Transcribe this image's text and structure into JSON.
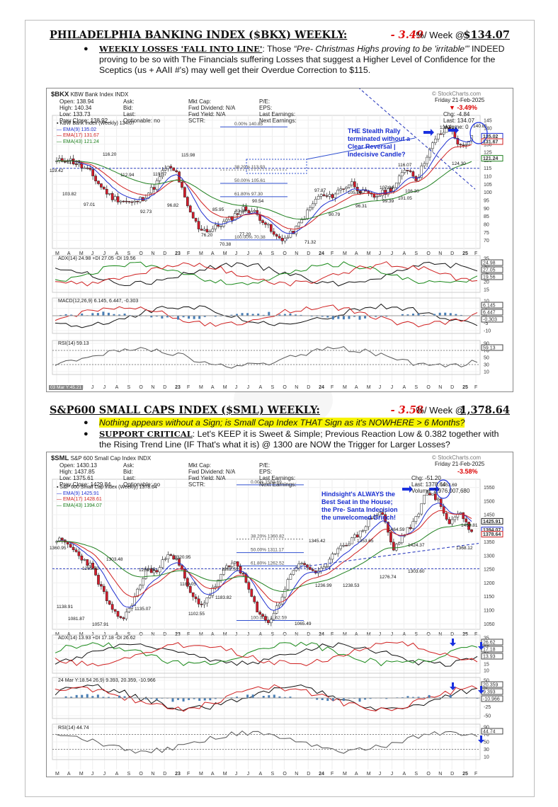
{
  "bkx": {
    "heading": "PHILADELPHIA BANKING INDEX ($BKX) WEEKLY:",
    "pct": "- 3.49",
    "per_week": "%/ Week @",
    "price": "$134.07",
    "bullet_label": "WEEKLY LOSSES 'FALL INTO LINE'",
    "bullet_colon": ": Those ",
    "bullet_quote": "“Pre- Christmas Highs proving to be 'irritable'”",
    "bullet_rest": " INDEED proving to be so with The Financials suffering Losses that suggest a Higher Level of Confidence for the Sceptics (us + AAII #'s) may well get their Overdue Correction to $115.",
    "chart": {
      "symbol": "$BKX",
      "name": "KBW Bank Index INDX",
      "source": "© StockCharts.com",
      "date": "Friday  21-Feb-2025",
      "change_pct": "▼ -3.49%",
      "left_block": [
        [
          "Open:",
          "138.94"
        ],
        [
          "High:",
          "140.34"
        ],
        [
          "Low:",
          "133.73"
        ],
        [
          "Prev Close:",
          "138.92"
        ]
      ],
      "mid_block": [
        "Ask:",
        "Bid:",
        "Last:",
        "Optionable:   no"
      ],
      "right_block": [
        "Mkt Cap:",
        "Fwd Dividend: N/A",
        "Fwd Yield:    N/A",
        "SCTR:"
      ],
      "far_block": [
        "P/E:",
        "EPS:",
        "Last Earnings:",
        "Next Earnings:"
      ],
      "stats": [
        [
          "Chg:",
          "-4.84"
        ],
        [
          "Last:",
          "134.07"
        ],
        [
          "Volume:",
          "0"
        ]
      ],
      "legend": [
        "▪ KBW Bank Index (Weekly) 134.07",
        "— EMA(9) 135.02",
        "— EMA(17) 131.67",
        "— EMA(43) 121.24"
      ],
      "note": "THE Stealth Rally terminated without a Clear Reversal | Indecisive Candle?",
      "fib": [
        "0.00% 140.85",
        "38.20% 113.93",
        "50.00% 105.61",
        "61.80% 97.30",
        "100.00% 70.38"
      ],
      "price_labels": [
        "119.42",
        "117.27",
        "116.20",
        "112.94",
        "119.57",
        "115.98",
        "103.82",
        "97.01",
        "92.73",
        "96.82",
        "85.95",
        "83.38",
        "90.54",
        "76.20",
        "77.20",
        "70.38",
        "71.32",
        "97.87",
        "90.79",
        "105.06",
        "107.84",
        "96.31",
        "99.39",
        "101.05",
        "116.07",
        "106.30",
        "139.61",
        "124.30",
        "140.85"
      ],
      "y_ticks": [
        "145",
        "140",
        "135",
        "130",
        "125",
        "120",
        "115",
        "110",
        "105",
        "100",
        "95",
        "90",
        "85",
        "80",
        "75",
        "70"
      ],
      "last_tags": [
        "134.07",
        "135.02",
        "131.67",
        "121.24"
      ],
      "months": [
        "M",
        "A",
        "M",
        "J",
        "J",
        "A",
        "S",
        "O",
        "N",
        "D",
        "23",
        "F",
        "M",
        "A",
        "M",
        "J",
        "J",
        "A",
        "S",
        "O",
        "N",
        "D",
        "24",
        "F",
        "M",
        "A",
        "M",
        "J",
        "J",
        "A",
        "S",
        "O",
        "N",
        "D",
        "25",
        "F"
      ],
      "adx_label": "ADX(14) 24.98  +DI 27.05  -DI 19.56",
      "adx_ticks": [
        "35",
        "30",
        "25",
        "20",
        "15"
      ],
      "adx_tags": [
        "24.98",
        "27.05",
        "19.56"
      ],
      "macd_label": "MACD(12,26,9) 6.145, 6.447, -0.303",
      "macd_ticks": [
        "10",
        "5",
        "0",
        "-5",
        "-10"
      ],
      "macd_tags": [
        "6.145",
        "6.447",
        "-0.303"
      ],
      "rsi_label": "RSI(14) 59.13",
      "rsi_ticks": [
        "90",
        "70",
        "50",
        "30",
        "10"
      ],
      "rsi_tag": "59.13",
      "date_stamp": "03 Mar Y:45.21"
    }
  },
  "sml": {
    "heading": "S&P600 SMALL CAPS INDEX ($SML) WEEKLY:",
    "pct": "- 3.58",
    "per_week": "%/ Week @",
    "price": "1,378.64",
    "bullet1": "Nothing appears without a Sign; is Small Cap Index THAT Sign as it's NOWHERE > 6 Months?",
    "bullet2_label": "SUPPORT CRITICAL",
    "bullet2_rest": ": Let's KEEP it is Sweet & Simple; Previous Reaction Low & 0.382 together with the Rising Trend Line (IF That's what it is) @ 1300 are NOW the Trigger for Larger Losses?",
    "chart": {
      "symbol": "$SML",
      "name": "S&P 600 Small Cap Index INDX",
      "source": "© StockCharts.com",
      "date": "Friday  21-Feb-2025",
      "change_pct": "-3.58%",
      "left_block": [
        [
          "Open:",
          "1430.13"
        ],
        [
          "High:",
          "1437.85"
        ],
        [
          "Low:",
          "1375.61"
        ],
        [
          "Prev Close:",
          "1429.84"
        ]
      ],
      "mid_block": [
        "Ask:",
        "Bid:",
        "Last:",
        "Optionable:   no"
      ],
      "right_block": [
        "Mkt Cap:",
        "Fwd Dividend: N/A",
        "Fwd Yield:    N/A",
        "SCTR:"
      ],
      "far_block": [
        "P/E:",
        "EPS:",
        "Last Earnings:",
        "Next Earnings:"
      ],
      "stats": [
        [
          "Chg:",
          "-51.20"
        ],
        [
          "Last:",
          "1378.64"
        ],
        [
          "Volume:",
          "2,976,007,680"
        ]
      ],
      "legend": [
        "▪ S&P 600 Small Cap Index (Weekly) 1378.64",
        "— EMA(9) 1425.91",
        "— EMA(17) 1428.61",
        "— EMA(43) 1394.07"
      ],
      "note": "Hindsight's ALWAYS the Best Seat in the House; the Pre- Santa Indecision the unwelcomed Grinch!",
      "fib": [
        "0.00% 1559.69",
        "38.20% 1360.82",
        "50.00% 1311.17",
        "61.80% 1262.52",
        "100.00% 1062.59"
      ],
      "price_labels": [
        "1360.95",
        "1265.52",
        "1303.48",
        "1138.91",
        "1081.87",
        "1057.91",
        "1251.76",
        "1135.07",
        "1320.95",
        "1189.05",
        "1102.55",
        "1282.59",
        "1183.82",
        "1345.42",
        "1236.99",
        "1238.53",
        "1353.65",
        "1464.59",
        "1424.37",
        "1303.60",
        "1276.74",
        "1553.69",
        "1468.81",
        "1368.12",
        "1065.49"
      ],
      "y_ticks": [
        "1550",
        "1500",
        "1450",
        "1400",
        "1350",
        "1300",
        "1250",
        "1200",
        "1150",
        "1100",
        "1050"
      ],
      "last_tags": [
        "1425.91",
        "1394.07",
        "1378.64"
      ],
      "months": [
        "M",
        "A",
        "M",
        "J",
        "J",
        "A",
        "S",
        "O",
        "N",
        "D",
        "23",
        "F",
        "M",
        "A",
        "M",
        "J",
        "J",
        "A",
        "S",
        "O",
        "N",
        "D",
        "24",
        "F",
        "M",
        "A",
        "M",
        "J",
        "J",
        "A",
        "S",
        "O",
        "N",
        "D",
        "25",
        "F"
      ],
      "adx_label": "ADX(14) 13.93  +DI 17.18  -DI 26.62",
      "adx_ticks": [
        "35",
        "30",
        "25",
        "20",
        "15",
        "10"
      ],
      "adx_tags": [
        "26.62",
        "17.18",
        "13.93"
      ],
      "macd_label": "24 Mar Y:18.54 26,9) 9.393, 20.359, -10.966",
      "macd_ticks": [
        "50",
        "25",
        "0",
        "-25",
        "-50"
      ],
      "macd_tags": [
        "20.359",
        "9.393",
        "-10.966"
      ],
      "rsi_label": "RSI(14) 44.74",
      "rsi_ticks": [
        "90",
        "70",
        "50",
        "30",
        "10"
      ],
      "rsi_tag": "44.74"
    }
  }
}
